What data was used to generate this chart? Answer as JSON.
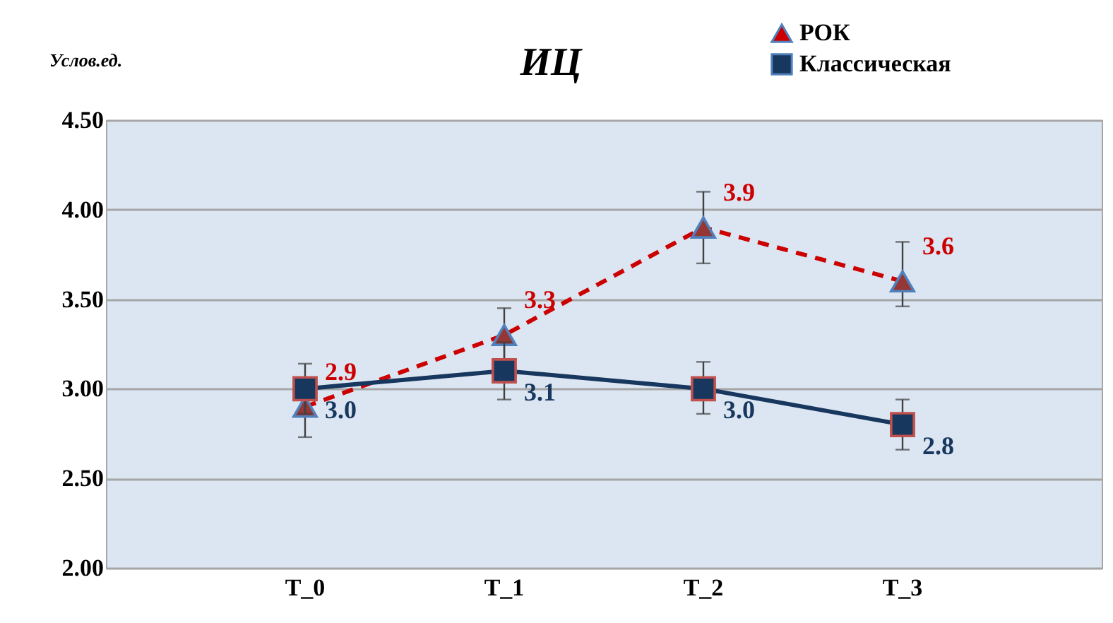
{
  "chart_data": {
    "type": "line",
    "title": "ИЦ",
    "ylabel": "Услов.ед.",
    "categories": [
      "T_0",
      "T_1",
      "T_2",
      "T_3"
    ],
    "series": [
      {
        "name": "РОК",
        "color": "#cc0000",
        "line_style": "dashed",
        "marker": "triangle",
        "values": [
          2.9,
          3.3,
          3.9,
          3.6
        ],
        "value_labels": [
          "2.9",
          "3.3",
          "3.9",
          "3.6"
        ],
        "errors": [
          [
            2.73,
            3.05
          ],
          [
            3.15,
            3.45
          ],
          [
            3.7,
            4.1
          ],
          [
            3.46,
            3.82
          ]
        ]
      },
      {
        "name": "Классическая",
        "color": "#17375e",
        "line_style": "solid",
        "marker": "square",
        "values": [
          3.0,
          3.1,
          3.0,
          2.8
        ],
        "value_labels": [
          "3.0",
          "3.1",
          "3.0",
          "2.8"
        ],
        "errors": [
          [
            2.86,
            3.14
          ],
          [
            2.94,
            3.26
          ],
          [
            2.86,
            3.15
          ],
          [
            2.66,
            2.94
          ]
        ]
      }
    ],
    "ylim": [
      2.0,
      4.5
    ],
    "yticks": [
      {
        "value": 2.0,
        "label": "2.00"
      },
      {
        "value": 2.5,
        "label": "2.50"
      },
      {
        "value": 3.0,
        "label": "3.00"
      },
      {
        "value": 3.5,
        "label": "3.50"
      },
      {
        "value": 4.0,
        "label": "4.00"
      },
      {
        "value": 4.5,
        "label": "4.50"
      }
    ],
    "grid": "y",
    "legend": "top right"
  }
}
